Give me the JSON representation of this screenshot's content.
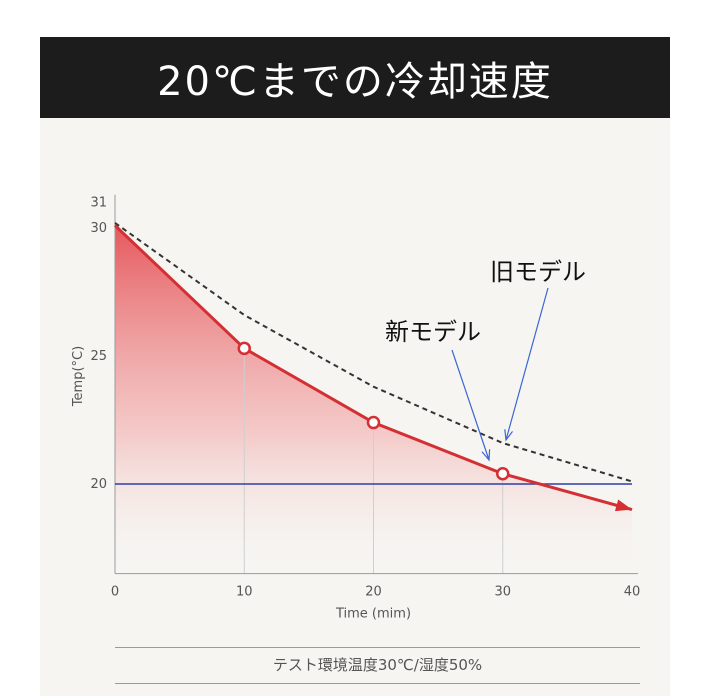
{
  "header": {
    "title": "20℃までの冷却速度"
  },
  "chart_data": {
    "type": "line",
    "xlabel": "Time (mim)",
    "ylabel": "Temp(°C)",
    "xlim": [
      0,
      40
    ],
    "ylim": [
      16.5,
      31.3
    ],
    "x_ticks": [
      "0",
      "10",
      "20",
      "30",
      "40"
    ],
    "y_ticks": [
      "20",
      "25",
      "30",
      "31"
    ],
    "grid": false,
    "series": [
      {
        "name": "新モデル",
        "style": "solid-area",
        "color": "#d42f33",
        "x": [
          0,
          10,
          20,
          30,
          40
        ],
        "y": [
          30.1,
          25.3,
          22.4,
          20.4,
          19.0
        ]
      },
      {
        "name": "旧モデル",
        "style": "dashed",
        "color": "#333333",
        "x": [
          0,
          10,
          20,
          30,
          40
        ],
        "y": [
          30.2,
          26.6,
          23.8,
          21.6,
          20.1
        ]
      }
    ],
    "reference_line": {
      "y": 20,
      "color": "#2f3fa8"
    },
    "markers": [
      {
        "x": 10,
        "y": 25.3
      },
      {
        "x": 20,
        "y": 22.4
      },
      {
        "x": 30,
        "y": 20.4
      }
    ],
    "annotations": [
      {
        "text": "新モデル",
        "target": "新モデル"
      },
      {
        "text": "旧モデル",
        "target": "旧モデル"
      }
    ]
  },
  "footer": {
    "note": "テスト環境温度30℃/湿度50%"
  }
}
